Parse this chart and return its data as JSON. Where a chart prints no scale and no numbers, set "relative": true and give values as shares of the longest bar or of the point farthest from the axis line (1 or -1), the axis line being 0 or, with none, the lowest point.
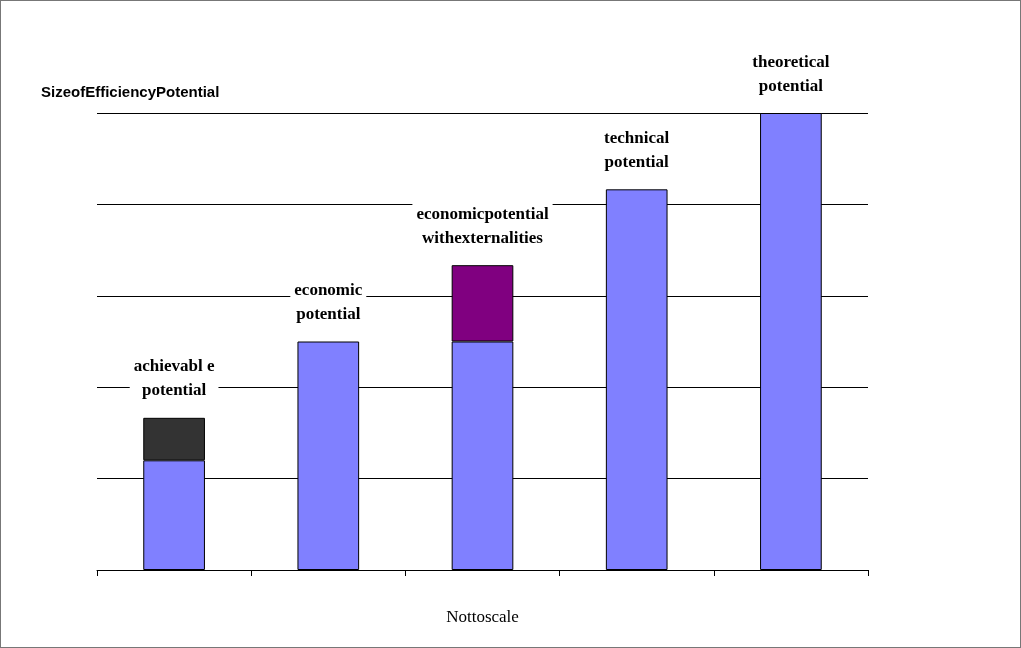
{
  "chart_data": {
    "type": "bar",
    "title": "SizeofEfficiencyPotential",
    "xlabel": "Nottoscale",
    "categories": [
      "achievabl e\npotential",
      "economic\npotential",
      "economicpotential\nwithexternalities",
      "technical\npotential",
      "theoretical\npotential"
    ],
    "relative": true,
    "stacked": true,
    "grid": "y",
    "series": [
      {
        "color": "#8080ff",
        "values": [
          0.24,
          0.5,
          0.5,
          0.833,
          1
        ]
      },
      {
        "colors": [
          "#333333",
          null,
          "#800080",
          null,
          null
        ],
        "values": [
          0.093,
          null,
          0.167,
          null,
          null
        ]
      }
    ]
  }
}
